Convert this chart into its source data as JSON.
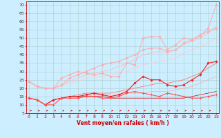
{
  "title": "",
  "xlabel": "Vent moyen/en rafales ( km/h )",
  "bg_color": "#cceeff",
  "grid_color": "#aacccc",
  "x": [
    0,
    1,
    2,
    3,
    4,
    5,
    6,
    7,
    8,
    9,
    10,
    11,
    12,
    13,
    14,
    15,
    16,
    17,
    18,
    19,
    20,
    21,
    22,
    23
  ],
  "series": [
    {
      "color": "#ffaaaa",
      "values": [
        24,
        21,
        20,
        20,
        22,
        26,
        28,
        30,
        32,
        34,
        35,
        36,
        38,
        40,
        43,
        44,
        44,
        42,
        43,
        47,
        49,
        51,
        56,
        70
      ],
      "marker": "D",
      "lw": 0.7,
      "ms": 1.8
    },
    {
      "color": "#ffaaaa",
      "values": [
        24,
        21,
        20,
        20,
        26,
        28,
        30,
        29,
        28,
        29,
        27,
        27,
        35,
        34,
        50,
        51,
        51,
        43,
        46,
        50,
        49,
        52,
        54,
        56
      ],
      "marker": "D",
      "lw": 0.7,
      "ms": 1.8
    },
    {
      "color": "#ffbbbb",
      "values": [
        24,
        21,
        20,
        20,
        22,
        24,
        26,
        28,
        29,
        30,
        31,
        33,
        35,
        37,
        40,
        41,
        42,
        41,
        43,
        46,
        48,
        50,
        53,
        57
      ],
      "marker": null,
      "lw": 0.6,
      "ms": 0
    },
    {
      "color": "#ffcccc",
      "values": [
        24,
        21,
        20,
        20,
        21,
        23,
        24,
        26,
        27,
        27,
        28,
        29,
        30,
        32,
        34,
        35,
        36,
        37,
        38,
        41,
        43,
        45,
        47,
        50
      ],
      "marker": null,
      "lw": 0.6,
      "ms": 0
    },
    {
      "color": "#ee2222",
      "values": [
        14,
        13,
        10,
        13,
        14,
        15,
        15,
        16,
        17,
        16,
        15,
        16,
        18,
        23,
        27,
        25,
        25,
        22,
        21,
        22,
        25,
        28,
        35,
        36
      ],
      "marker": "D",
      "lw": 0.8,
      "ms": 1.8
    },
    {
      "color": "#ff5555",
      "values": [
        14,
        13,
        10,
        10,
        14,
        14,
        14,
        15,
        15,
        14,
        14,
        15,
        17,
        18,
        17,
        16,
        15,
        17,
        16,
        15,
        14,
        14,
        15,
        16
      ],
      "marker": "x",
      "lw": 0.8,
      "ms": 2.5
    },
    {
      "color": "#ff7777",
      "values": [
        14,
        13,
        10,
        13,
        14,
        15,
        16,
        17,
        17,
        17,
        17,
        18,
        19,
        20,
        21,
        22,
        23,
        23,
        24,
        25,
        27,
        29,
        32,
        35
      ],
      "marker": null,
      "lw": 0.6,
      "ms": 0
    },
    {
      "color": "#ffaaaa",
      "values": [
        14,
        13,
        10,
        13,
        14,
        15,
        15,
        15,
        16,
        16,
        16,
        16,
        17,
        17,
        17,
        18,
        18,
        18,
        19,
        20,
        21,
        23,
        25,
        27
      ],
      "marker": null,
      "lw": 0.5,
      "ms": 0
    },
    {
      "color": "#cc0000",
      "values": [
        14,
        13,
        10,
        13,
        14,
        15,
        15,
        15,
        15,
        15,
        14,
        14,
        14,
        14,
        14,
        14,
        14,
        14,
        14,
        14,
        15,
        16,
        17,
        18
      ],
      "marker": null,
      "lw": 0.5,
      "ms": 0
    }
  ],
  "ylim": [
    5,
    72
  ],
  "yticks": [
    5,
    10,
    15,
    20,
    25,
    30,
    35,
    40,
    45,
    50,
    55,
    60,
    65,
    70
  ],
  "xticks": [
    0,
    1,
    2,
    3,
    4,
    5,
    6,
    7,
    8,
    9,
    10,
    11,
    12,
    13,
    14,
    15,
    16,
    17,
    18,
    19,
    20,
    21,
    22,
    23
  ],
  "red_line_color": "#cc0000",
  "tick_fontsize": 4.5,
  "xlabel_fontsize": 5.5
}
